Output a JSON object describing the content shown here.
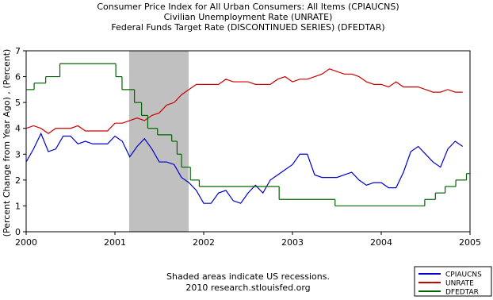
{
  "chart_data": {
    "type": "line",
    "title": [
      "Consumer Price Index for All Urban Consumers: All Items (CPIAUCNS)",
      "Civilian Unemployment Rate (UNRATE)",
      "Federal Funds Target Rate  (DISCONTINUED SERIES) (DFEDTAR)"
    ],
    "y_label": "(Percent Change from Year Ago) , (Percent)",
    "notes": [
      "Shaded areas indicate US recessions.",
      "2010 research.stlouisfed.org"
    ],
    "xlim": [
      2000,
      2005
    ],
    "xticks": [
      2000,
      2001,
      2002,
      2003,
      2004,
      2005
    ],
    "ylim": [
      0,
      7
    ],
    "yticks": [
      0,
      1,
      2,
      3,
      4,
      5,
      6,
      7
    ],
    "recessions": [
      [
        2001.16,
        2001.83
      ]
    ],
    "x": [
      2000,
      2000.083,
      2000.167,
      2000.25,
      2000.333,
      2000.417,
      2000.5,
      2000.583,
      2000.667,
      2000.75,
      2000.833,
      2000.917,
      2001,
      2001.083,
      2001.167,
      2001.25,
      2001.333,
      2001.417,
      2001.5,
      2001.583,
      2001.667,
      2001.75,
      2001.833,
      2001.917,
      2002,
      2002.083,
      2002.167,
      2002.25,
      2002.333,
      2002.417,
      2002.5,
      2002.583,
      2002.667,
      2002.75,
      2002.833,
      2002.917,
      2003,
      2003.083,
      2003.167,
      2003.25,
      2003.333,
      2003.417,
      2003.5,
      2003.583,
      2003.667,
      2003.75,
      2003.833,
      2003.917,
      2004,
      2004.083,
      2004.167,
      2004.25,
      2004.333,
      2004.417,
      2004.5,
      2004.583,
      2004.667,
      2004.75,
      2004.833,
      2004.917
    ],
    "series": [
      {
        "name": "CPIAUCNS",
        "color": "#0000cc",
        "values": [
          2.7,
          3.2,
          3.8,
          3.1,
          3.2,
          3.7,
          3.7,
          3.4,
          3.5,
          3.4,
          3.4,
          3.4,
          3.7,
          3.5,
          2.9,
          3.3,
          3.6,
          3.2,
          2.7,
          2.7,
          2.6,
          2.1,
          1.9,
          1.6,
          1.1,
          1.1,
          1.5,
          1.6,
          1.2,
          1.1,
          1.5,
          1.8,
          1.5,
          2.0,
          2.2,
          2.4,
          2.6,
          3.0,
          3.0,
          2.2,
          2.1,
          2.1,
          2.1,
          2.2,
          2.3,
          2.0,
          1.8,
          1.9,
          1.9,
          1.7,
          1.7,
          2.3,
          3.1,
          3.3,
          3.0,
          2.7,
          2.5,
          3.2,
          3.5,
          3.3
        ]
      },
      {
        "name": "UNRATE",
        "color": "#cc0000",
        "values": [
          4.0,
          4.1,
          4.0,
          3.8,
          4.0,
          4.0,
          4.0,
          4.1,
          3.9,
          3.9,
          3.9,
          3.9,
          4.2,
          4.2,
          4.3,
          4.4,
          4.3,
          4.5,
          4.6,
          4.9,
          5.0,
          5.3,
          5.5,
          5.7,
          5.7,
          5.7,
          5.7,
          5.9,
          5.8,
          5.8,
          5.8,
          5.7,
          5.7,
          5.7,
          5.9,
          6.0,
          5.8,
          5.9,
          5.9,
          6.0,
          6.1,
          6.3,
          6.2,
          6.1,
          6.1,
          6.0,
          5.8,
          5.7,
          5.7,
          5.6,
          5.8,
          5.6,
          5.6,
          5.6,
          5.5,
          5.4,
          5.4,
          5.5,
          5.4,
          5.4
        ]
      },
      {
        "name": "DFEDTAR",
        "color": "#006600",
        "step": true,
        "x": [
          2000,
          2000.09,
          2000.22,
          2000.38,
          2001.01,
          2001.08,
          2001.22,
          2001.3,
          2001.37,
          2001.48,
          2001.64,
          2001.7,
          2001.75,
          2001.85,
          2001.95,
          2002.85,
          2003.48,
          2004.49,
          2004.61,
          2004.72,
          2004.84,
          2004.96
        ],
        "values": [
          5.5,
          5.75,
          6.0,
          6.5,
          6.0,
          5.5,
          5.0,
          4.5,
          4.0,
          3.75,
          3.5,
          3.0,
          2.5,
          2.0,
          1.75,
          1.25,
          1.0,
          1.25,
          1.5,
          1.75,
          2.0,
          2.25
        ]
      }
    ]
  }
}
